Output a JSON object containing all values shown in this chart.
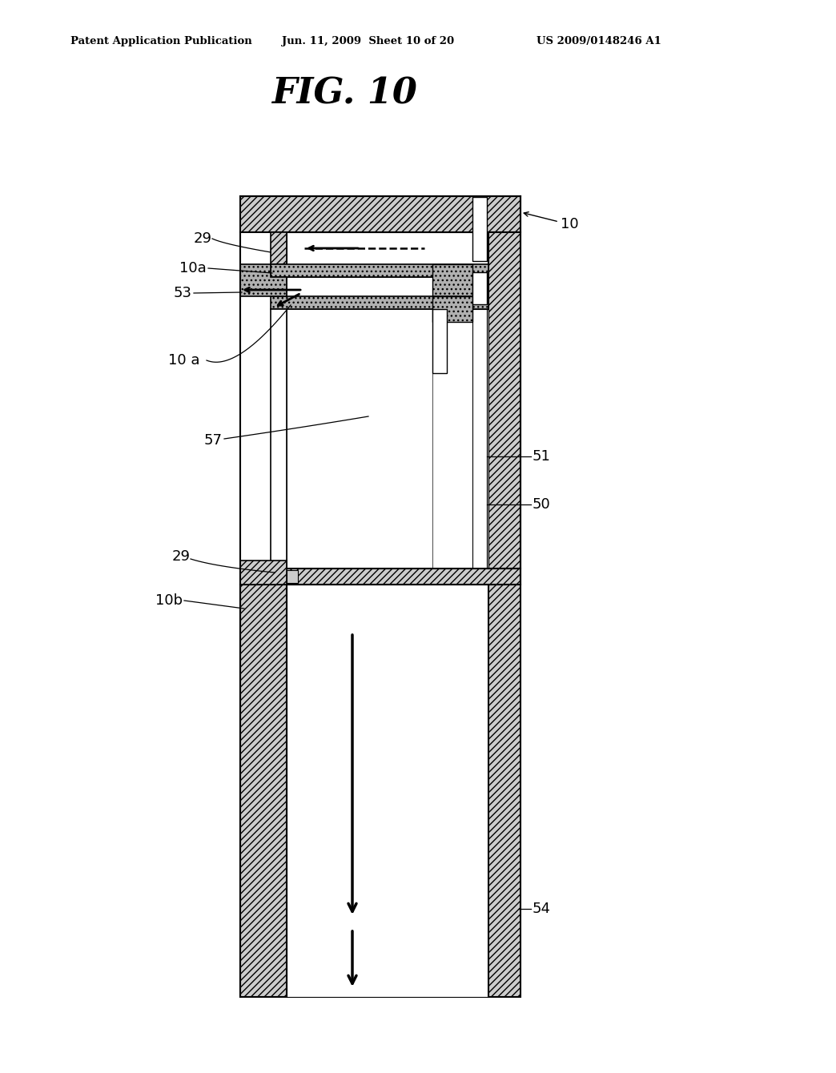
{
  "bg_color": "#ffffff",
  "header_left": "Patent Application Publication",
  "header_center": "Jun. 11, 2009  Sheet 10 of 20",
  "header_right": "US 2009/0148246 A1",
  "fig_title": "FIG. 10",
  "line_color": "#000000",
  "gray_fill": "#b0b0b0",
  "light_gray": "#cccccc",
  "white": "#ffffff"
}
